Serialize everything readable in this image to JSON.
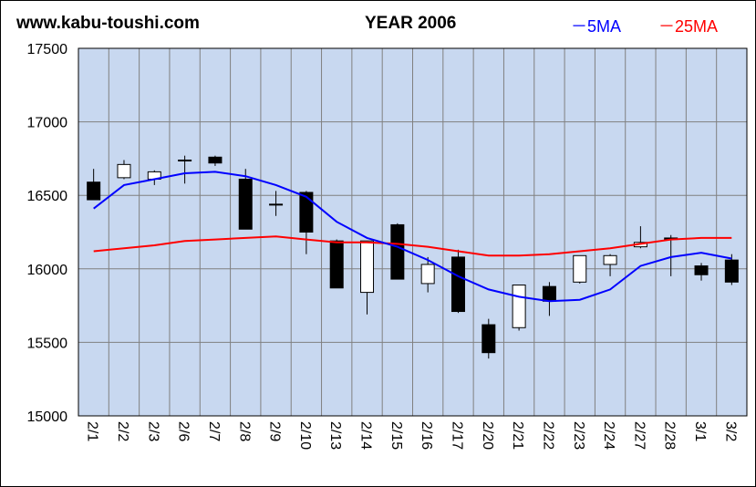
{
  "header": {
    "site": "www.kabu-toushi.com",
    "title": "YEAR 2006",
    "legend_5ma": "－5MA",
    "legend_25ma": "－25MA"
  },
  "colors": {
    "plot_bg": "#c8d8f0",
    "grid": "#808080",
    "ma5": "#0000ff",
    "ma25": "#ff0000",
    "candle_down": "#000000",
    "candle_up": "#ffffff"
  },
  "chart_data": {
    "type": "candlestick",
    "title": "YEAR 2006",
    "ylim": [
      15000,
      17500
    ],
    "yticks": [
      15000,
      15500,
      16000,
      16500,
      17000,
      17500
    ],
    "grid": true,
    "legend_position": "top-right",
    "categories": [
      "2/1",
      "2/2",
      "2/3",
      "2/6",
      "2/7",
      "2/8",
      "2/9",
      "2/10",
      "2/13",
      "2/14",
      "2/15",
      "2/16",
      "2/17",
      "2/20",
      "2/21",
      "2/22",
      "2/23",
      "2/24",
      "2/27",
      "2/28",
      "3/1",
      "3/2"
    ],
    "ohlc": [
      {
        "open": 16590,
        "high": 16680,
        "low": 16470,
        "close": 16470
      },
      {
        "open": 16620,
        "high": 16740,
        "low": 16610,
        "close": 16710
      },
      {
        "open": 16610,
        "high": 16670,
        "low": 16570,
        "close": 16660
      },
      {
        "open": 16740,
        "high": 16770,
        "low": 16580,
        "close": 16740
      },
      {
        "open": 16760,
        "high": 16770,
        "low": 16700,
        "close": 16720
      },
      {
        "open": 16610,
        "high": 16680,
        "low": 16270,
        "close": 16270
      },
      {
        "open": 16440,
        "high": 16530,
        "low": 16360,
        "close": 16440
      },
      {
        "open": 16520,
        "high": 16530,
        "low": 16100,
        "close": 16250
      },
      {
        "open": 16190,
        "high": 16200,
        "low": 15870,
        "close": 15870
      },
      {
        "open": 15840,
        "high": 16190,
        "low": 15690,
        "close": 16190
      },
      {
        "open": 16300,
        "high": 16310,
        "low": 15930,
        "close": 15930
      },
      {
        "open": 15900,
        "high": 16080,
        "low": 15840,
        "close": 16030
      },
      {
        "open": 16080,
        "high": 16130,
        "low": 15700,
        "close": 15710
      },
      {
        "open": 15620,
        "high": 15660,
        "low": 15390,
        "close": 15430
      },
      {
        "open": 15600,
        "high": 15890,
        "low": 15580,
        "close": 15890
      },
      {
        "open": 15880,
        "high": 15910,
        "low": 15680,
        "close": 15780
      },
      {
        "open": 15910,
        "high": 16090,
        "low": 15900,
        "close": 16090
      },
      {
        "open": 16030,
        "high": 16100,
        "low": 15950,
        "close": 16090
      },
      {
        "open": 16150,
        "high": 16290,
        "low": 16140,
        "close": 16180
      },
      {
        "open": 16210,
        "high": 16230,
        "low": 15950,
        "close": 16200
      },
      {
        "open": 16020,
        "high": 16040,
        "low": 15920,
        "close": 15960
      },
      {
        "open": 16060,
        "high": 16100,
        "low": 15890,
        "close": 15910
      }
    ],
    "series": [
      {
        "name": "5MA",
        "values": [
          16410,
          16570,
          16610,
          16650,
          16660,
          16630,
          16570,
          16490,
          16320,
          16210,
          16150,
          16060,
          15950,
          15860,
          15810,
          15780,
          15790,
          15860,
          16020,
          16080,
          16110,
          16070
        ]
      },
      {
        "name": "25MA",
        "values": [
          16120,
          16140,
          16160,
          16190,
          16200,
          16210,
          16220,
          16200,
          16180,
          16180,
          16170,
          16150,
          16120,
          16090,
          16090,
          16100,
          16120,
          16140,
          16170,
          16200,
          16210,
          16210
        ]
      }
    ]
  }
}
